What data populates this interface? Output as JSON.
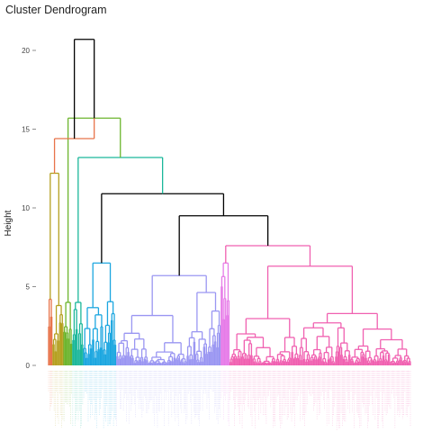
{
  "chart_data": {
    "type": "dendrogram",
    "title": "Cluster Dendrogram",
    "xlabel": "",
    "ylabel": "Height",
    "ylim": [
      0,
      21
    ],
    "yticks": [
      0,
      5,
      10,
      15,
      20
    ],
    "grid": false,
    "legend": "none",
    "leaf_count": 330,
    "clusters": [
      {
        "color": "#E8734A",
        "leaves": 4
      },
      {
        "color": "#B5A020",
        "leaves": 10
      },
      {
        "color": "#6CB52D",
        "leaves": 8
      },
      {
        "color": "#1BB79A",
        "leaves": 10
      },
      {
        "color": "#1BA6E0",
        "leaves": 30
      },
      {
        "color": "#9A96F2",
        "leaves": 95
      },
      {
        "color": "#E67BE8",
        "leaves": 8
      },
      {
        "color": "#F060B0",
        "leaves": 165
      }
    ],
    "merges": [
      {
        "label": "root",
        "height": 20.7,
        "color": "#000000"
      },
      {
        "label": "orange-others",
        "height": 14.4,
        "color": "#E8734A"
      },
      {
        "label": "olive-lime",
        "height": 12.2,
        "color": "#B5A020"
      },
      {
        "label": "green-rest",
        "height": 15.7,
        "color": "#6CB52D"
      },
      {
        "label": "teal-rest",
        "height": 13.2,
        "color": "#1BB79A"
      },
      {
        "label": "blue-rest",
        "height": 10.9,
        "color": "#000000"
      },
      {
        "label": "purple-pink",
        "height": 9.5,
        "color": "#000000"
      },
      {
        "label": "blue-cluster",
        "height": 7.6,
        "color": "#1BA6E0"
      },
      {
        "label": "purple-cluster",
        "height": 8.8,
        "color": "#9A96F2"
      },
      {
        "label": "pink-cluster",
        "height": 7.6,
        "color": "#F060B0"
      }
    ]
  }
}
